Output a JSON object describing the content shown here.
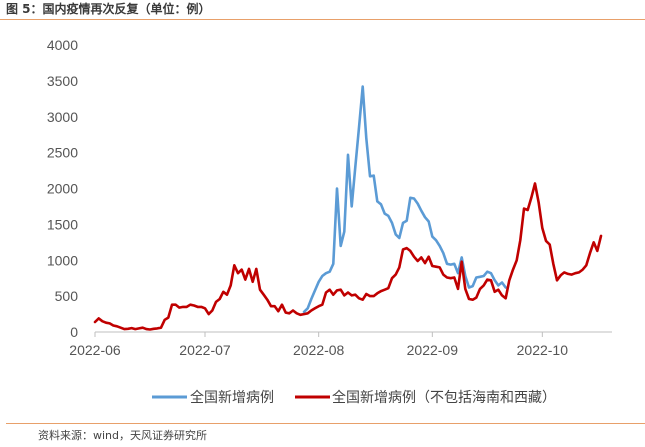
{
  "figure": {
    "title": "图 5：国内疫情再次反复（单位：例）",
    "source": "资料来源：wind，天风证券研究所"
  },
  "colors": {
    "series1": "#5b9bd5",
    "series2": "#c00000",
    "axis": "#bfbfbf",
    "rule": "#e8a06a"
  },
  "chart_data": {
    "type": "line",
    "title": "",
    "xlabel": "",
    "ylabel": "",
    "ylim": [
      0,
      4000
    ],
    "yticks": [
      "0",
      "500",
      "1000",
      "1500",
      "2000",
      "2500",
      "3000",
      "3500",
      "4000"
    ],
    "xlim": [
      "2022-06-01",
      "2022-10-20"
    ],
    "xticks": [
      {
        "date": "2022-06-01",
        "label": "2022-06"
      },
      {
        "date": "2022-07-01",
        "label": "2022-07"
      },
      {
        "date": "2022-08-01",
        "label": "2022-08"
      },
      {
        "date": "2022-09-01",
        "label": "2022-09"
      },
      {
        "date": "2022-10-01",
        "label": "2022-10"
      }
    ],
    "grid": false,
    "legend_position": "bottom",
    "series": [
      {
        "name": "全国新增病例",
        "points": [
          [
            "2022-07-28",
            280
          ],
          [
            "2022-07-29",
            330
          ],
          [
            "2022-07-30",
            460
          ],
          [
            "2022-07-31",
            580
          ],
          [
            "2022-08-01",
            700
          ],
          [
            "2022-08-02",
            780
          ],
          [
            "2022-08-03",
            820
          ],
          [
            "2022-08-04",
            840
          ],
          [
            "2022-08-05",
            950
          ],
          [
            "2022-08-06",
            2000
          ],
          [
            "2022-08-07",
            1200
          ],
          [
            "2022-08-08",
            1400
          ],
          [
            "2022-08-09",
            2470
          ],
          [
            "2022-08-10",
            1750
          ],
          [
            "2022-08-11",
            2300
          ],
          [
            "2022-08-12",
            2850
          ],
          [
            "2022-08-13",
            3420
          ],
          [
            "2022-08-14",
            2700
          ],
          [
            "2022-08-15",
            2170
          ],
          [
            "2022-08-16",
            2180
          ],
          [
            "2022-08-17",
            1820
          ],
          [
            "2022-08-18",
            1780
          ],
          [
            "2022-08-19",
            1650
          ],
          [
            "2022-08-20",
            1620
          ],
          [
            "2022-08-21",
            1520
          ],
          [
            "2022-08-22",
            1360
          ],
          [
            "2022-08-23",
            1310
          ],
          [
            "2022-08-24",
            1520
          ],
          [
            "2022-08-25",
            1550
          ],
          [
            "2022-08-26",
            1870
          ],
          [
            "2022-08-27",
            1860
          ],
          [
            "2022-08-28",
            1790
          ],
          [
            "2022-08-29",
            1690
          ],
          [
            "2022-08-30",
            1600
          ],
          [
            "2022-08-31",
            1540
          ],
          [
            "2022-09-01",
            1330
          ],
          [
            "2022-09-02",
            1280
          ],
          [
            "2022-09-03",
            1200
          ],
          [
            "2022-09-04",
            1100
          ],
          [
            "2022-09-05",
            950
          ],
          [
            "2022-09-06",
            940
          ],
          [
            "2022-09-07",
            950
          ],
          [
            "2022-09-08",
            820
          ],
          [
            "2022-09-09",
            1040
          ],
          [
            "2022-09-10",
            780
          ],
          [
            "2022-09-11",
            620
          ],
          [
            "2022-09-12",
            640
          ],
          [
            "2022-09-13",
            760
          ],
          [
            "2022-09-14",
            770
          ],
          [
            "2022-09-15",
            780
          ],
          [
            "2022-09-16",
            840
          ],
          [
            "2022-09-17",
            820
          ],
          [
            "2022-09-18",
            720
          ],
          [
            "2022-09-19",
            650
          ],
          [
            "2022-09-20",
            690
          ],
          [
            "2022-09-21",
            620
          ]
        ]
      },
      {
        "name": "全国新增病例（不包括海南和西藏）",
        "points": [
          [
            "2022-06-01",
            140
          ],
          [
            "2022-06-02",
            190
          ],
          [
            "2022-06-03",
            150
          ],
          [
            "2022-06-04",
            130
          ],
          [
            "2022-06-05",
            120
          ],
          [
            "2022-06-06",
            90
          ],
          [
            "2022-06-07",
            80
          ],
          [
            "2022-06-08",
            60
          ],
          [
            "2022-06-09",
            40
          ],
          [
            "2022-06-10",
            45
          ],
          [
            "2022-06-11",
            55
          ],
          [
            "2022-06-12",
            40
          ],
          [
            "2022-06-13",
            50
          ],
          [
            "2022-06-14",
            60
          ],
          [
            "2022-06-15",
            40
          ],
          [
            "2022-06-16",
            35
          ],
          [
            "2022-06-17",
            45
          ],
          [
            "2022-06-18",
            50
          ],
          [
            "2022-06-19",
            60
          ],
          [
            "2022-06-20",
            170
          ],
          [
            "2022-06-21",
            200
          ],
          [
            "2022-06-22",
            380
          ],
          [
            "2022-06-23",
            380
          ],
          [
            "2022-06-24",
            340
          ],
          [
            "2022-06-25",
            350
          ],
          [
            "2022-06-26",
            350
          ],
          [
            "2022-06-27",
            380
          ],
          [
            "2022-06-28",
            370
          ],
          [
            "2022-06-29",
            350
          ],
          [
            "2022-06-30",
            350
          ],
          [
            "2022-07-01",
            330
          ],
          [
            "2022-07-02",
            250
          ],
          [
            "2022-07-03",
            300
          ],
          [
            "2022-07-04",
            420
          ],
          [
            "2022-07-05",
            460
          ],
          [
            "2022-07-06",
            560
          ],
          [
            "2022-07-07",
            520
          ],
          [
            "2022-07-08",
            650
          ],
          [
            "2022-07-09",
            930
          ],
          [
            "2022-07-10",
            820
          ],
          [
            "2022-07-11",
            870
          ],
          [
            "2022-07-12",
            730
          ],
          [
            "2022-07-13",
            880
          ],
          [
            "2022-07-14",
            700
          ],
          [
            "2022-07-15",
            880
          ],
          [
            "2022-07-16",
            590
          ],
          [
            "2022-07-17",
            520
          ],
          [
            "2022-07-18",
            450
          ],
          [
            "2022-07-19",
            360
          ],
          [
            "2022-07-20",
            360
          ],
          [
            "2022-07-21",
            290
          ],
          [
            "2022-07-22",
            380
          ],
          [
            "2022-07-23",
            270
          ],
          [
            "2022-07-24",
            260
          ],
          [
            "2022-07-25",
            300
          ],
          [
            "2022-07-26",
            260
          ],
          [
            "2022-07-27",
            240
          ],
          [
            "2022-07-28",
            250
          ],
          [
            "2022-07-29",
            260
          ],
          [
            "2022-07-30",
            300
          ],
          [
            "2022-07-31",
            330
          ],
          [
            "2022-08-01",
            360
          ],
          [
            "2022-08-02",
            380
          ],
          [
            "2022-08-03",
            550
          ],
          [
            "2022-08-04",
            590
          ],
          [
            "2022-08-05",
            520
          ],
          [
            "2022-08-06",
            580
          ],
          [
            "2022-08-07",
            590
          ],
          [
            "2022-08-08",
            510
          ],
          [
            "2022-08-09",
            550
          ],
          [
            "2022-08-10",
            510
          ],
          [
            "2022-08-11",
            520
          ],
          [
            "2022-08-12",
            470
          ],
          [
            "2022-08-13",
            450
          ],
          [
            "2022-08-14",
            530
          ],
          [
            "2022-08-15",
            500
          ],
          [
            "2022-08-16",
            500
          ],
          [
            "2022-08-17",
            540
          ],
          [
            "2022-08-18",
            570
          ],
          [
            "2022-08-19",
            590
          ],
          [
            "2022-08-20",
            610
          ],
          [
            "2022-08-21",
            750
          ],
          [
            "2022-08-22",
            800
          ],
          [
            "2022-08-23",
            900
          ],
          [
            "2022-08-24",
            1150
          ],
          [
            "2022-08-25",
            1170
          ],
          [
            "2022-08-26",
            1130
          ],
          [
            "2022-08-27",
            1050
          ],
          [
            "2022-08-28",
            990
          ],
          [
            "2022-08-29",
            1040
          ],
          [
            "2022-08-30",
            960
          ],
          [
            "2022-08-31",
            1050
          ],
          [
            "2022-09-01",
            920
          ],
          [
            "2022-09-02",
            910
          ],
          [
            "2022-09-03",
            900
          ],
          [
            "2022-09-04",
            800
          ],
          [
            "2022-09-05",
            760
          ],
          [
            "2022-09-06",
            750
          ],
          [
            "2022-09-07",
            760
          ],
          [
            "2022-09-08",
            600
          ],
          [
            "2022-09-09",
            980
          ],
          [
            "2022-09-10",
            600
          ],
          [
            "2022-09-11",
            460
          ],
          [
            "2022-09-12",
            450
          ],
          [
            "2022-09-13",
            480
          ],
          [
            "2022-09-14",
            600
          ],
          [
            "2022-09-15",
            650
          ],
          [
            "2022-09-16",
            730
          ],
          [
            "2022-09-17",
            720
          ],
          [
            "2022-09-18",
            560
          ],
          [
            "2022-09-19",
            590
          ],
          [
            "2022-09-20",
            510
          ],
          [
            "2022-09-21",
            470
          ],
          [
            "2022-09-22",
            720
          ],
          [
            "2022-09-23",
            870
          ],
          [
            "2022-09-24",
            1000
          ],
          [
            "2022-09-25",
            1280
          ],
          [
            "2022-09-26",
            1720
          ],
          [
            "2022-09-27",
            1700
          ],
          [
            "2022-09-28",
            1870
          ],
          [
            "2022-09-29",
            2070
          ],
          [
            "2022-09-30",
            1800
          ],
          [
            "2022-10-01",
            1450
          ],
          [
            "2022-10-02",
            1270
          ],
          [
            "2022-10-03",
            1220
          ],
          [
            "2022-10-04",
            950
          ],
          [
            "2022-10-05",
            720
          ],
          [
            "2022-10-06",
            790
          ],
          [
            "2022-10-07",
            830
          ],
          [
            "2022-10-08",
            810
          ],
          [
            "2022-10-09",
            800
          ],
          [
            "2022-10-10",
            820
          ],
          [
            "2022-10-11",
            830
          ],
          [
            "2022-10-12",
            870
          ],
          [
            "2022-10-13",
            930
          ],
          [
            "2022-10-14",
            1100
          ],
          [
            "2022-10-15",
            1250
          ],
          [
            "2022-10-16",
            1130
          ],
          [
            "2022-10-17",
            1340
          ]
        ]
      }
    ]
  }
}
